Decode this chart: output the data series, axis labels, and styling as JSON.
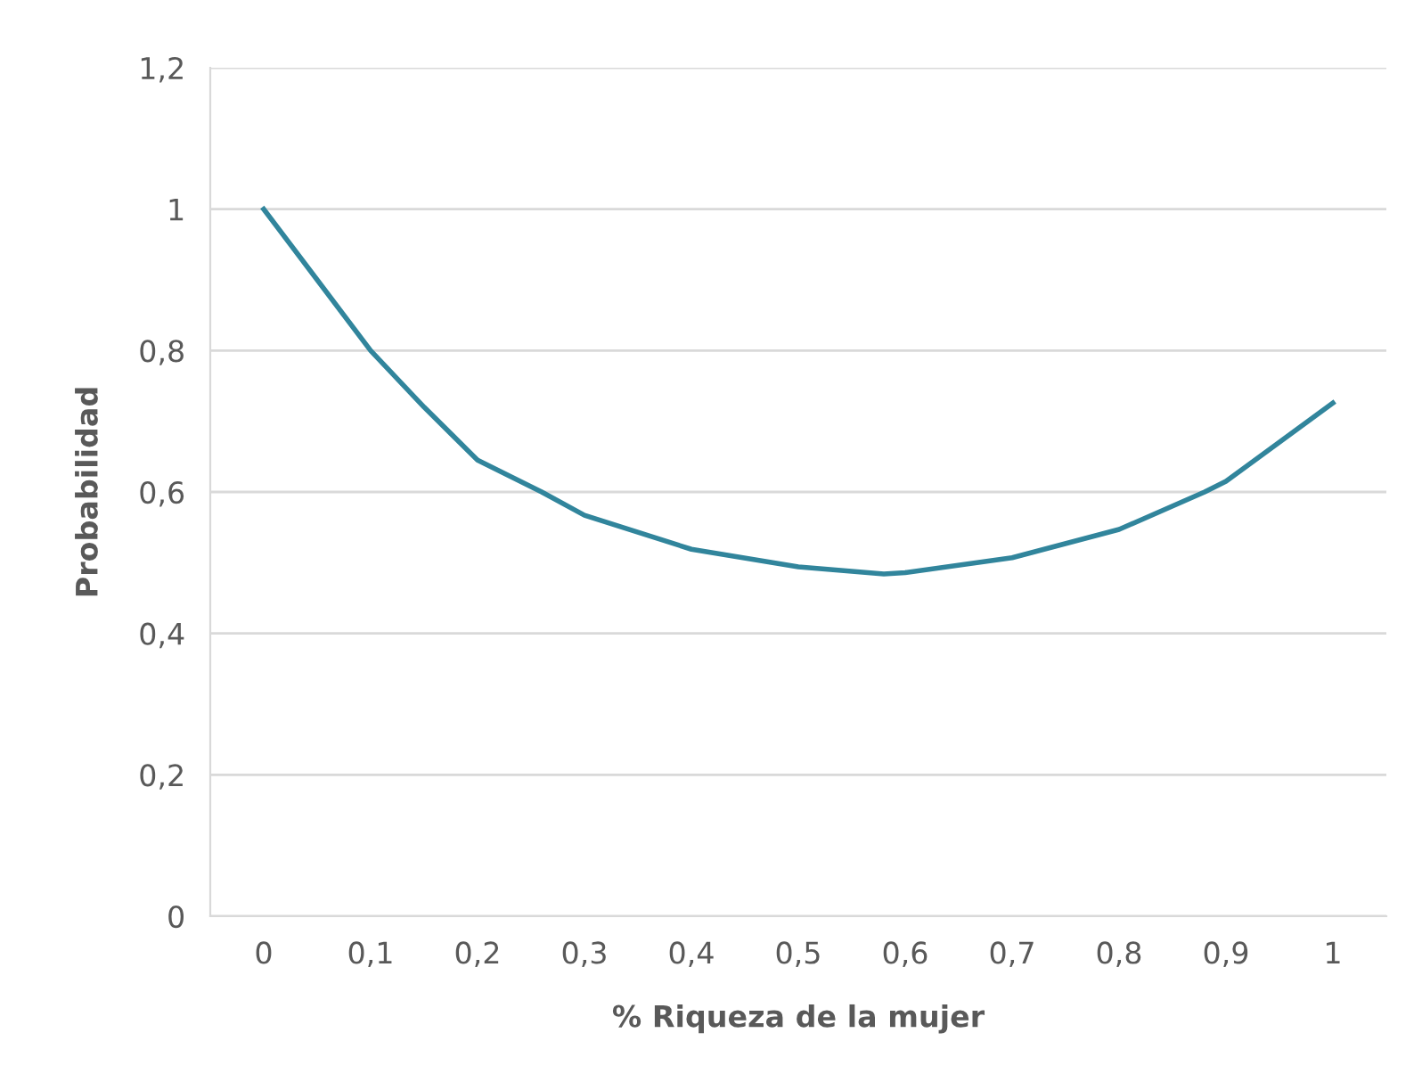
{
  "chart_data": {
    "type": "line",
    "xlabel": "% Riqueza de la mujer",
    "ylabel": "Probabilidad",
    "x": [
      0,
      0.05,
      0.1,
      0.15,
      0.2,
      0.26,
      0.3,
      0.4,
      0.5,
      0.58,
      0.6,
      0.7,
      0.8,
      0.88,
      0.9,
      1
    ],
    "series": [
      {
        "color": "#31859c",
        "values": [
          1.0,
          0.9,
          0.8,
          0.72,
          0.645,
          0.6,
          0.567,
          0.519,
          0.494,
          0.484,
          0.486,
          0.507,
          0.547,
          0.6,
          0.615,
          0.726
        ]
      }
    ],
    "xlim": [
      -0.05,
      1.05
    ],
    "xticks": [
      0,
      {
        "value": 0.1,
        "label": "0,1"
      },
      {
        "value": 0.2,
        "label": "0,2"
      },
      {
        "value": 0.3,
        "label": "0,3"
      },
      {
        "value": 0.4,
        "label": "0,4"
      },
      {
        "value": 0.5,
        "label": "0,5"
      },
      {
        "value": 0.6,
        "label": "0,6"
      },
      {
        "value": 0.7,
        "label": "0,7"
      },
      {
        "value": 0.8,
        "label": "0,8"
      },
      {
        "value": 0.9,
        "label": "0,9"
      },
      1
    ],
    "ylim": [
      0,
      1.2
    ],
    "yticks": [
      0,
      {
        "value": 0.2,
        "label": "0,2"
      },
      {
        "value": 0.4,
        "label": "0,4"
      },
      {
        "value": 0.6,
        "label": "0,6"
      },
      {
        "value": 0.8,
        "label": "0,8"
      },
      1,
      {
        "value": 1.2,
        "label": "1,2"
      }
    ],
    "grid": "y",
    "marker": "none",
    "line_style": "solid"
  }
}
